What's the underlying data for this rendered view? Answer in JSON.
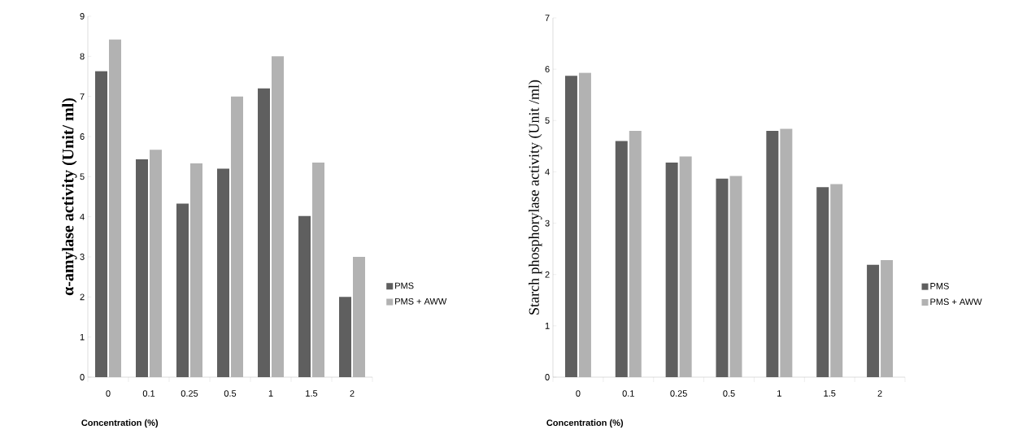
{
  "chart_data": [
    {
      "type": "bar",
      "ylabel": "α-amylase activity (Unit/ ml)",
      "xlabel": "Concentration (%)",
      "categories": [
        "0",
        "0.1",
        "0.25",
        "0.5",
        "1",
        "1.5",
        "2"
      ],
      "series": [
        {
          "name": "PMS",
          "color": "#5f5f5f",
          "values": [
            7.63,
            5.43,
            4.33,
            5.2,
            7.2,
            4.02,
            2.0
          ]
        },
        {
          "name": "PMS + AWW",
          "color": "#b2b2b2",
          "values": [
            8.42,
            5.67,
            5.33,
            7.0,
            8.0,
            5.35,
            3.0
          ]
        }
      ],
      "ylim": [
        0,
        9
      ],
      "yticks": [
        0,
        1,
        2,
        3,
        4,
        5,
        6,
        7,
        8,
        9
      ],
      "grid": false,
      "legend": "right"
    },
    {
      "type": "bar",
      "ylabel": "Starch phosphorylase activity (Unit /ml)",
      "xlabel": "Concentration (%)",
      "categories": [
        "0",
        "0.1",
        "0.25",
        "0.5",
        "1",
        "1.5",
        "2"
      ],
      "series": [
        {
          "name": "PMS",
          "color": "#5f5f5f",
          "values": [
            5.87,
            4.6,
            4.18,
            3.87,
            4.8,
            3.7,
            2.19
          ]
        },
        {
          "name": "PMS + AWW",
          "color": "#b2b2b2",
          "values": [
            5.93,
            4.8,
            4.3,
            3.92,
            4.84,
            3.76,
            2.28
          ]
        }
      ],
      "ylim": [
        0,
        7
      ],
      "yticks": [
        0,
        1,
        2,
        3,
        4,
        5,
        6,
        7
      ],
      "grid": false,
      "legend": "right"
    }
  ]
}
